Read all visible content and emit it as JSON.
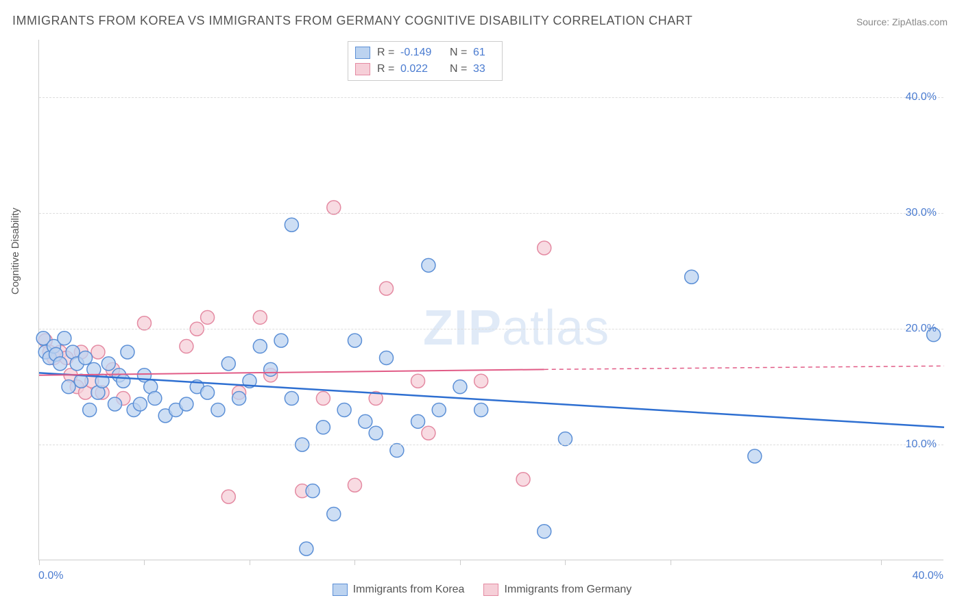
{
  "title": "IMMIGRANTS FROM KOREA VS IMMIGRANTS FROM GERMANY COGNITIVE DISABILITY CORRELATION CHART",
  "source": "Source: ZipAtlas.com",
  "ylabel": "Cognitive Disability",
  "watermark_bold": "ZIP",
  "watermark_rest": "atlas",
  "chart": {
    "type": "scatter",
    "x_range": [
      0,
      43
    ],
    "y_range": [
      0,
      45
    ],
    "y_ticks": [
      10,
      20,
      30,
      40
    ],
    "y_tick_labels": [
      "10.0%",
      "20.0%",
      "30.0%",
      "40.0%"
    ],
    "x_ticks": [
      0,
      5,
      10,
      15,
      20,
      25,
      30,
      40
    ],
    "x_axis_min_label": "0.0%",
    "x_axis_max_label": "40.0%",
    "grid_color": "#dddddd",
    "axis_color": "#cccccc",
    "background_color": "#ffffff",
    "series": [
      {
        "name": "Immigrants from Korea",
        "fill": "#bcd3f0",
        "stroke": "#5b8fd6",
        "line_color": "#2e6fd1",
        "marker_radius": 10,
        "R": "-0.149",
        "N": "61",
        "trend": {
          "x1": 0,
          "y1": 16.2,
          "x2": 43,
          "y2": 11.5
        },
        "points": [
          [
            0.2,
            19.2
          ],
          [
            0.3,
            18.0
          ],
          [
            0.5,
            17.5
          ],
          [
            0.7,
            18.5
          ],
          [
            0.8,
            17.8
          ],
          [
            1.0,
            17.0
          ],
          [
            1.2,
            19.2
          ],
          [
            1.4,
            15.0
          ],
          [
            1.6,
            18.0
          ],
          [
            1.8,
            17.0
          ],
          [
            2.0,
            15.5
          ],
          [
            2.2,
            17.5
          ],
          [
            2.4,
            13.0
          ],
          [
            2.6,
            16.5
          ],
          [
            2.8,
            14.5
          ],
          [
            3.0,
            15.5
          ],
          [
            3.3,
            17.0
          ],
          [
            3.6,
            13.5
          ],
          [
            3.8,
            16.0
          ],
          [
            4.0,
            15.5
          ],
          [
            4.2,
            18.0
          ],
          [
            4.5,
            13.0
          ],
          [
            4.8,
            13.5
          ],
          [
            5.0,
            16.0
          ],
          [
            5.3,
            15.0
          ],
          [
            5.5,
            14.0
          ],
          [
            6.0,
            12.5
          ],
          [
            6.5,
            13.0
          ],
          [
            7.0,
            13.5
          ],
          [
            7.5,
            15.0
          ],
          [
            8.0,
            14.5
          ],
          [
            8.5,
            13.0
          ],
          [
            9.0,
            17.0
          ],
          [
            9.5,
            14.0
          ],
          [
            10.0,
            15.5
          ],
          [
            10.5,
            18.5
          ],
          [
            11.0,
            16.5
          ],
          [
            11.5,
            19.0
          ],
          [
            12.0,
            14.0
          ],
          [
            12.0,
            29.0
          ],
          [
            12.5,
            10.0
          ],
          [
            12.7,
            1.0
          ],
          [
            13.0,
            6.0
          ],
          [
            13.5,
            11.5
          ],
          [
            14.0,
            4.0
          ],
          [
            14.5,
            13.0
          ],
          [
            15.0,
            19.0
          ],
          [
            15.5,
            12.0
          ],
          [
            16.0,
            11.0
          ],
          [
            16.5,
            17.5
          ],
          [
            17.0,
            9.5
          ],
          [
            18.0,
            12.0
          ],
          [
            18.5,
            25.5
          ],
          [
            19.0,
            13.0
          ],
          [
            20.0,
            15.0
          ],
          [
            21.0,
            13.0
          ],
          [
            24.0,
            2.5
          ],
          [
            25.0,
            10.5
          ],
          [
            31.0,
            24.5
          ],
          [
            34.0,
            9.0
          ],
          [
            42.5,
            19.5
          ]
        ]
      },
      {
        "name": "Immigrants from Germany",
        "fill": "#f6cfd8",
        "stroke": "#e48aa2",
        "line_color": "#e15b86",
        "marker_radius": 10,
        "R": "0.022",
        "N": "33",
        "trend_solid": {
          "x1": 0,
          "y1": 16.0,
          "x2": 24,
          "y2": 16.5
        },
        "trend_dashed": {
          "x1": 24,
          "y1": 16.5,
          "x2": 43,
          "y2": 16.8
        },
        "points": [
          [
            0.3,
            19.0
          ],
          [
            0.5,
            18.0
          ],
          [
            0.7,
            17.5
          ],
          [
            1.0,
            18.0
          ],
          [
            1.3,
            17.5
          ],
          [
            1.5,
            16.0
          ],
          [
            1.8,
            15.0
          ],
          [
            2.0,
            18.0
          ],
          [
            2.2,
            14.5
          ],
          [
            2.5,
            15.5
          ],
          [
            2.8,
            18.0
          ],
          [
            3.0,
            14.5
          ],
          [
            3.5,
            16.5
          ],
          [
            4.0,
            14.0
          ],
          [
            5.0,
            20.5
          ],
          [
            7.0,
            18.5
          ],
          [
            7.5,
            20.0
          ],
          [
            8.0,
            21.0
          ],
          [
            9.0,
            5.5
          ],
          [
            9.5,
            14.5
          ],
          [
            10.5,
            21.0
          ],
          [
            11.0,
            16.0
          ],
          [
            12.5,
            6.0
          ],
          [
            13.5,
            14.0
          ],
          [
            14.0,
            30.5
          ],
          [
            15.0,
            6.5
          ],
          [
            16.0,
            14.0
          ],
          [
            16.5,
            23.5
          ],
          [
            18.5,
            11.0
          ],
          [
            21.0,
            15.5
          ],
          [
            23.0,
            7.0
          ],
          [
            24.0,
            27.0
          ],
          [
            18.0,
            15.5
          ]
        ]
      }
    ]
  },
  "legend_top_label_R": "R =",
  "legend_top_label_N": "N ="
}
